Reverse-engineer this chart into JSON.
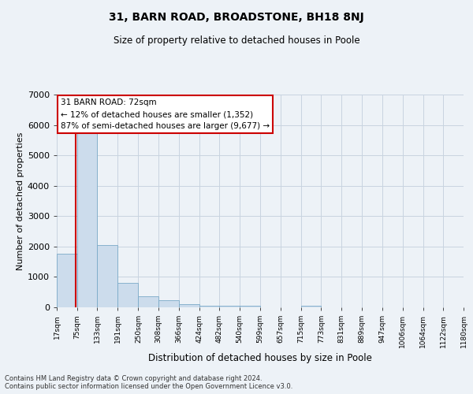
{
  "title": "31, BARN ROAD, BROADSTONE, BH18 8NJ",
  "subtitle": "Size of property relative to detached houses in Poole",
  "xlabel": "Distribution of detached houses by size in Poole",
  "ylabel": "Number of detached properties",
  "bin_labels": [
    "17sqm",
    "75sqm",
    "133sqm",
    "191sqm",
    "250sqm",
    "308sqm",
    "366sqm",
    "424sqm",
    "482sqm",
    "540sqm",
    "599sqm",
    "657sqm",
    "715sqm",
    "773sqm",
    "831sqm",
    "889sqm",
    "947sqm",
    "1006sqm",
    "1064sqm",
    "1122sqm",
    "1180sqm"
  ],
  "bin_edges": [
    17,
    75,
    133,
    191,
    250,
    308,
    366,
    424,
    482,
    540,
    599,
    657,
    715,
    773,
    831,
    889,
    947,
    1006,
    1064,
    1122,
    1180
  ],
  "bar_heights": [
    1770,
    5790,
    2060,
    810,
    370,
    230,
    110,
    60,
    50,
    40,
    0,
    0,
    40,
    0,
    0,
    0,
    0,
    0,
    0,
    0
  ],
  "bar_color": "#ccdcec",
  "bar_edge_color": "#7aaac8",
  "property_size": 72,
  "property_line_color": "#cc0000",
  "annotation_title": "31 BARN ROAD: 72sqm",
  "annotation_line1": "← 12% of detached houses are smaller (1,352)",
  "annotation_line2": "87% of semi-detached houses are larger (9,677) →",
  "annotation_box_color": "#ffffff",
  "annotation_box_edge": "#cc0000",
  "ylim": [
    0,
    7000
  ],
  "yticks": [
    0,
    1000,
    2000,
    3000,
    4000,
    5000,
    6000,
    7000
  ],
  "footer_line1": "Contains HM Land Registry data © Crown copyright and database right 2024.",
  "footer_line2": "Contains public sector information licensed under the Open Government Licence v3.0.",
  "bg_color": "#edf2f7",
  "grid_color": "#c8d4e0"
}
